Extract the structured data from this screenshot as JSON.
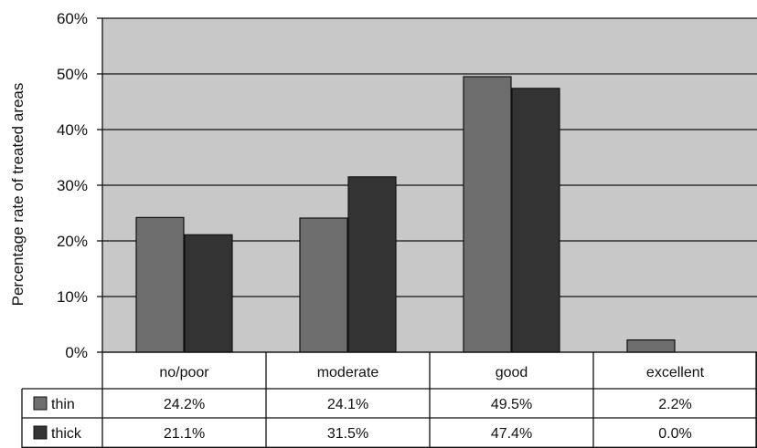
{
  "chart_data": {
    "type": "bar",
    "title": "",
    "xlabel": "",
    "ylabel": "Percentage rate of treated areas",
    "categories": [
      "no/poor",
      "moderate",
      "good",
      "excellent"
    ],
    "series": [
      {
        "name": "thin",
        "values": [
          24.2,
          24.1,
          49.5,
          2.2
        ],
        "labels": [
          "24.2%",
          "24.1%",
          "49.5%",
          "2.2%"
        ],
        "color": "#6e6e6e"
      },
      {
        "name": "thick",
        "values": [
          21.1,
          31.5,
          47.4,
          0.0
        ],
        "labels": [
          "21.1%",
          "31.5%",
          "47.4%",
          "0.0%"
        ],
        "color": "#333333"
      }
    ],
    "ylim": [
      0,
      60
    ],
    "yticks": [
      0,
      10,
      20,
      30,
      40,
      50,
      60
    ],
    "ytick_labels": [
      "0%",
      "10%",
      "20%",
      "30%",
      "40%",
      "50%",
      "60%"
    ],
    "grid": true,
    "plot_background": "#c8c8c8",
    "legend": "data table below plot"
  }
}
